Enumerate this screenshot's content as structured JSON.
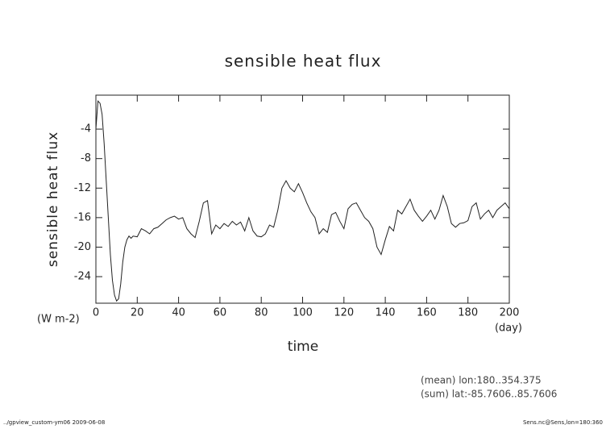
{
  "chart_data": {
    "type": "line",
    "title": "sensible heat flux",
    "y_label": "sensible heat flux",
    "y_unit": "(W m-2)",
    "x_label": "time",
    "x_unit": "(day)",
    "annotations": [
      "(mean) lon:180..354.375",
      "(sum) lat:-85.7606..85.7606"
    ],
    "footer_left": "../gpview_custom-ym06  2009-06-08",
    "footer_right": "Sens.nc@Sens,lon=180:360",
    "color": "#222222",
    "x": [
      0,
      1,
      2,
      3,
      4,
      5,
      6,
      7,
      8,
      9,
      10,
      11,
      12,
      13,
      14,
      15,
      16,
      17,
      18,
      20,
      22,
      24,
      26,
      28,
      30,
      32,
      34,
      36,
      38,
      40,
      42,
      44,
      46,
      48,
      50,
      52,
      54,
      56,
      58,
      60,
      62,
      64,
      66,
      68,
      70,
      72,
      74,
      76,
      78,
      80,
      82,
      84,
      86,
      88,
      90,
      92,
      94,
      96,
      98,
      100,
      102,
      104,
      106,
      108,
      110,
      112,
      114,
      116,
      118,
      120,
      122,
      124,
      126,
      128,
      130,
      132,
      134,
      136,
      138,
      140,
      142,
      144,
      146,
      148,
      150,
      152,
      154,
      156,
      158,
      160,
      162,
      164,
      166,
      168,
      170,
      172,
      174,
      176,
      178,
      180,
      182,
      184,
      186,
      188,
      190,
      192,
      194,
      196,
      198,
      200
    ],
    "values": [
      -4,
      -0.2,
      -0.5,
      -2,
      -6,
      -11,
      -16,
      -21,
      -24.5,
      -26.5,
      -27.3,
      -27,
      -25,
      -22,
      -20,
      -19,
      -18.5,
      -18.8,
      -18.5,
      -18.6,
      -17.5,
      -17.8,
      -18.2,
      -17.5,
      -17.3,
      -16.8,
      -16.3,
      -16,
      -15.8,
      -16.2,
      -16,
      -17.5,
      -18.2,
      -18.7,
      -16.5,
      -14,
      -13.7,
      -18.2,
      -17,
      -17.5,
      -16.8,
      -17.2,
      -16.5,
      -17,
      -16.6,
      -17.8,
      -16,
      -17.8,
      -18.5,
      -18.6,
      -18.2,
      -17,
      -17.3,
      -15,
      -12,
      -11,
      -12,
      -12.5,
      -11.4,
      -12.6,
      -14,
      -15.2,
      -16,
      -18.2,
      -17.5,
      -18,
      -15.6,
      -15.3,
      -16.5,
      -17.5,
      -14.8,
      -14.2,
      -14,
      -15,
      -16,
      -16.5,
      -17.5,
      -20,
      -21,
      -19,
      -17.2,
      -17.8,
      -15,
      -15.5,
      -14.5,
      -13.5,
      -15,
      -15.8,
      -16.5,
      -15.8,
      -15,
      -16.2,
      -15,
      -13,
      -14.5,
      -16.8,
      -17.3,
      -16.8,
      -16.7,
      -16.4,
      -14.5,
      -14,
      -16.2,
      -15.5,
      -15,
      -16,
      -15,
      -14.5,
      -14,
      -14.8
    ],
    "xlim": [
      0,
      200
    ],
    "ylim": [
      -27.6,
      0.6
    ],
    "xticks": [
      0,
      20,
      40,
      60,
      80,
      100,
      120,
      140,
      160,
      180,
      200
    ],
    "yticks": [
      -24,
      -20,
      -16,
      -12,
      -8,
      -4
    ]
  }
}
